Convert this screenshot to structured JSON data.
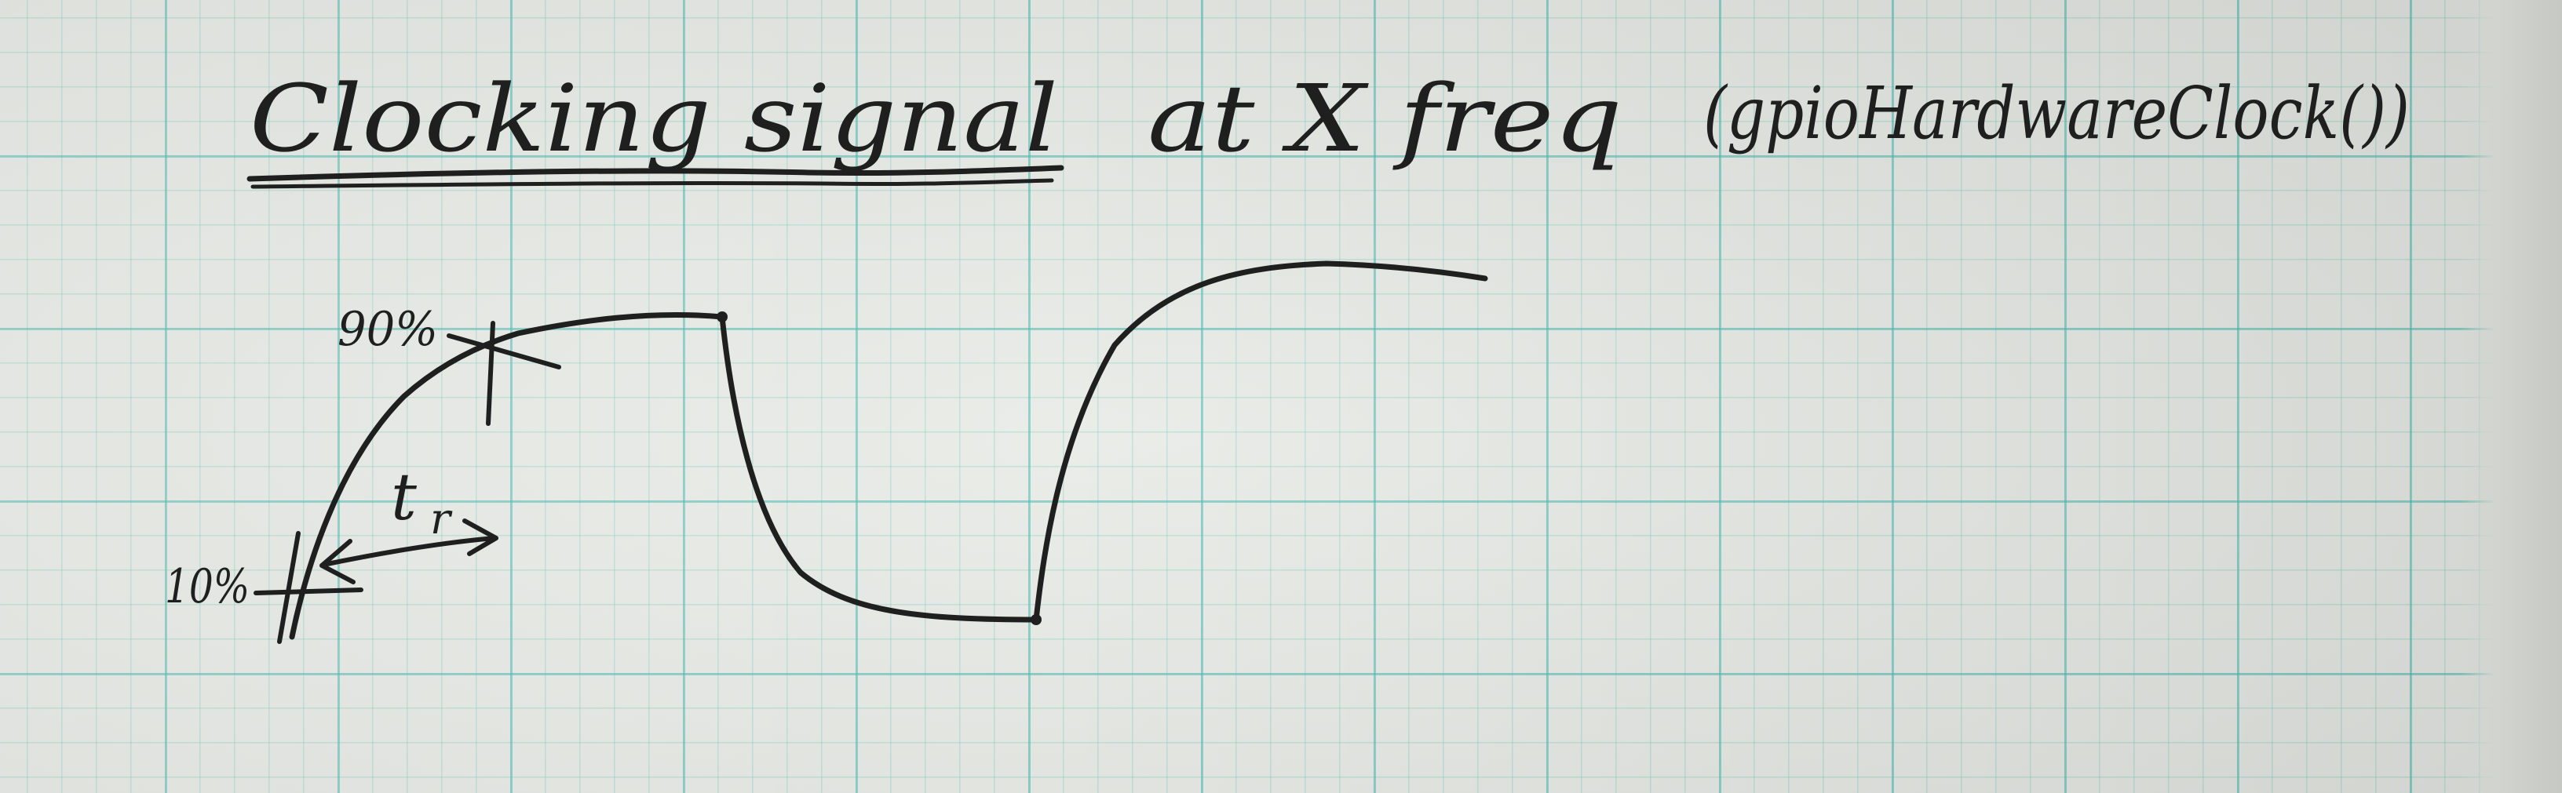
{
  "title": {
    "underlined": "Clocking signal",
    "rest": "at X freq",
    "function": "(gpioHardwareClock())"
  },
  "labels": {
    "ninety": "90%",
    "ten": "10%",
    "rise_time": "t",
    "rise_time_subscript": "r"
  },
  "colors": {
    "ink": "#1f1f1f",
    "grid": "#4ebcb2",
    "paper": "#e8ebe6"
  }
}
